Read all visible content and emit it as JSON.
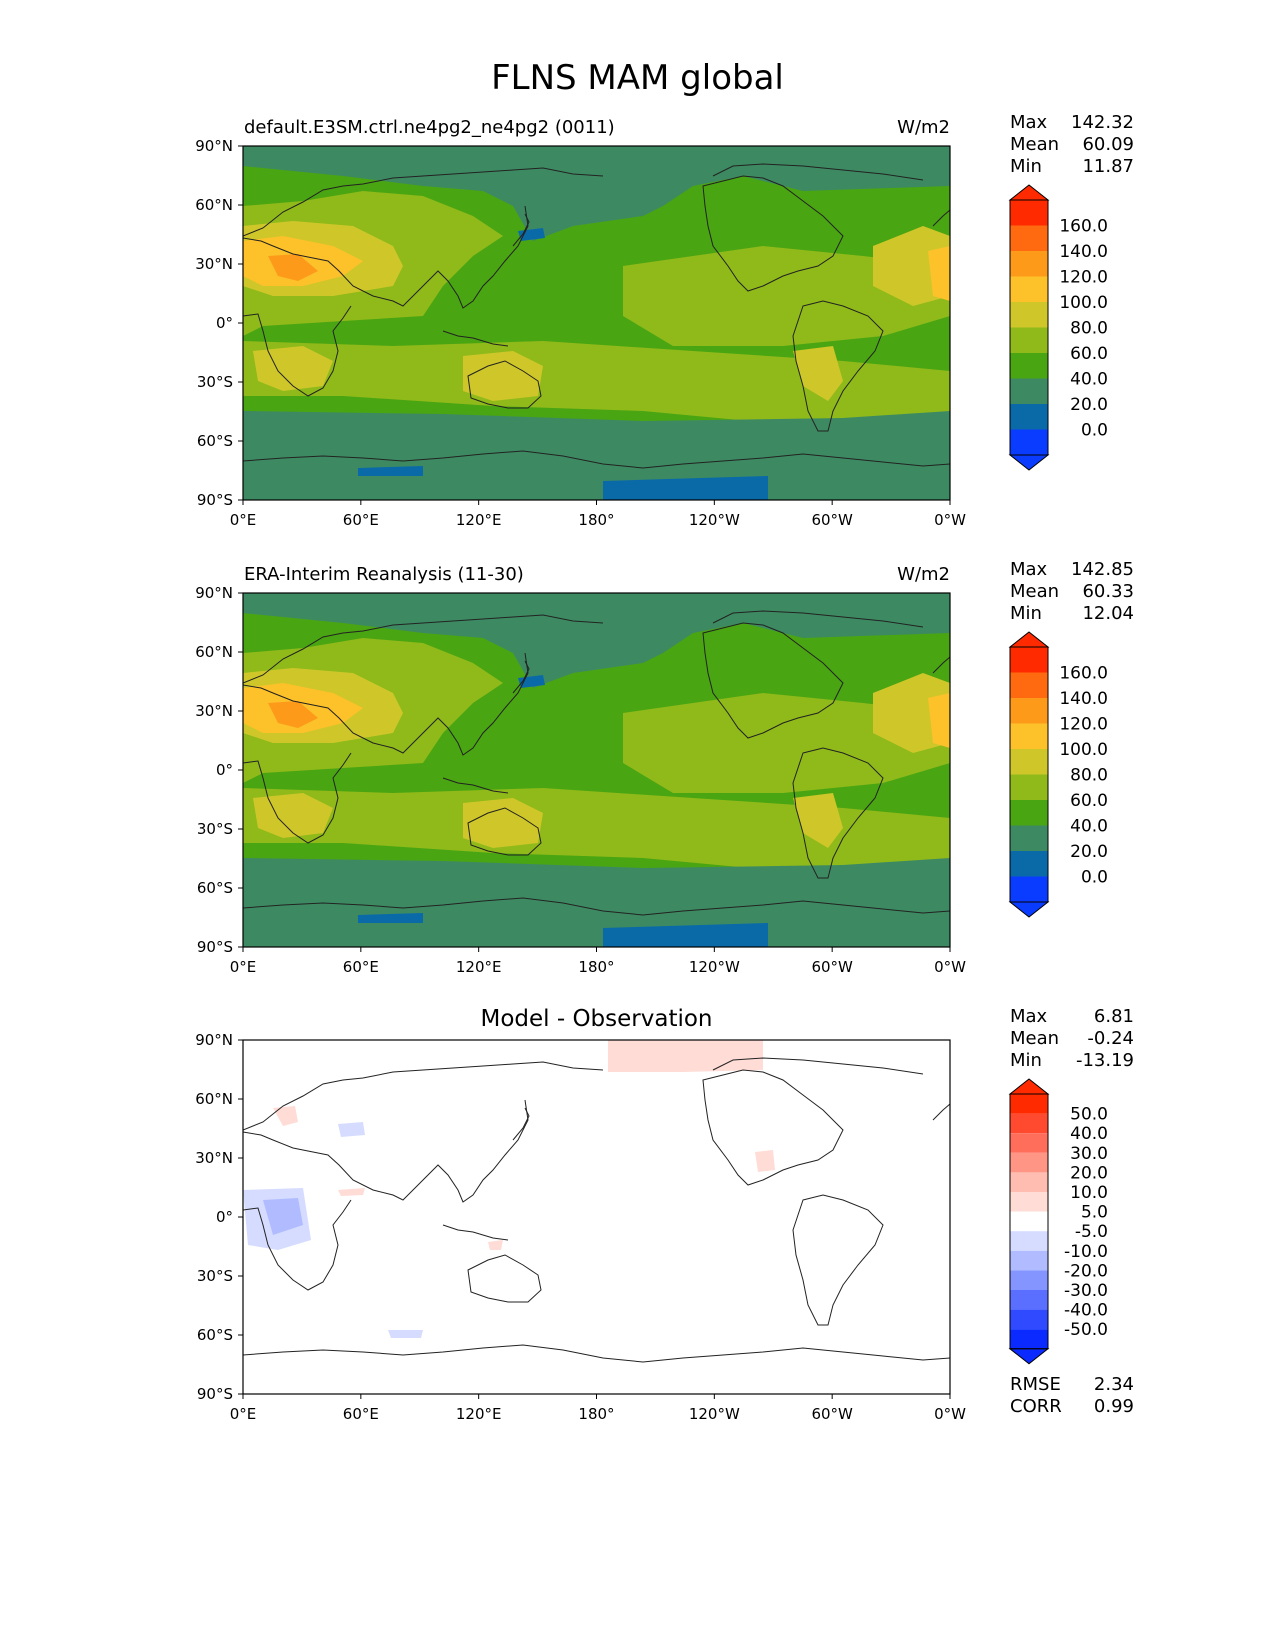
{
  "figure": {
    "title": "FLNS MAM global"
  },
  "panels": [
    {
      "id": "test",
      "left_title": "default.E3SM.ctrl.ne4pg2_ne4pg2 (0011)",
      "center_title": "",
      "units": "W/m2",
      "stats": [
        {
          "label": "Max",
          "value": "142.32"
        },
        {
          "label": "Mean",
          "value": "60.09"
        },
        {
          "label": "Min",
          "value": "11.87"
        }
      ],
      "colorbar": {
        "ticks": [
          "160.0",
          "140.0",
          "120.0",
          "100.0",
          "80.0",
          "60.0",
          "40.0",
          "20.0",
          "0.0"
        ],
        "colors": [
          "#ff2a00",
          "#ff6a10",
          "#fd9a1a",
          "#fdc12a",
          "#cfc729",
          "#8fba1a",
          "#4aa512",
          "#3d8a62",
          "#0a6aa8",
          "#0a3cff"
        ]
      }
    },
    {
      "id": "reference",
      "left_title": "ERA-Interim Reanalysis (11-30)",
      "center_title": "",
      "units": "W/m2",
      "stats": [
        {
          "label": "Max",
          "value": "142.85"
        },
        {
          "label": "Mean",
          "value": "60.33"
        },
        {
          "label": "Min",
          "value": "12.04"
        }
      ],
      "colorbar": {
        "ticks": [
          "160.0",
          "140.0",
          "120.0",
          "100.0",
          "80.0",
          "60.0",
          "40.0",
          "20.0",
          "0.0"
        ],
        "colors": [
          "#ff2a00",
          "#ff6a10",
          "#fd9a1a",
          "#fdc12a",
          "#cfc729",
          "#8fba1a",
          "#4aa512",
          "#3d8a62",
          "#0a6aa8",
          "#0a3cff"
        ]
      }
    },
    {
      "id": "diff",
      "left_title": "",
      "center_title": "Model - Observation",
      "units": "",
      "stats": [
        {
          "label": "Max",
          "value": "6.81"
        },
        {
          "label": "Mean",
          "value": "-0.24"
        },
        {
          "label": "Min",
          "value": "-13.19"
        }
      ],
      "extra_stats": [
        {
          "label": "RMSE",
          "value": "2.34"
        },
        {
          "label": "CORR",
          "value": "0.99"
        }
      ],
      "colorbar": {
        "ticks": [
          "50.0",
          "40.0",
          "30.0",
          "20.0",
          "10.0",
          "5.0",
          "-5.0",
          "-10.0",
          "-20.0",
          "-30.0",
          "-40.0",
          "-50.0"
        ],
        "colors": [
          "#ff2a00",
          "#ff4a30",
          "#ff6e5a",
          "#ff9585",
          "#ffbcb0",
          "#ffdcd6",
          "#ffffff",
          "#d6dcff",
          "#b0bcff",
          "#8595ff",
          "#5a6eff",
          "#304aff",
          "#0a2aff"
        ]
      }
    }
  ],
  "chart_data": {
    "type": "heatmap",
    "x_ticks": [
      "0°E",
      "60°E",
      "120°E",
      "180°",
      "120°W",
      "60°W",
      "0°W"
    ],
    "y_ticks": [
      "90°N",
      "60°N",
      "30°N",
      "0°",
      "30°S",
      "60°S",
      "90°S"
    ],
    "xlim": [
      0,
      360
    ],
    "ylim": [
      -90,
      90
    ],
    "projection": "PlateCarree",
    "coastlines": true
  }
}
